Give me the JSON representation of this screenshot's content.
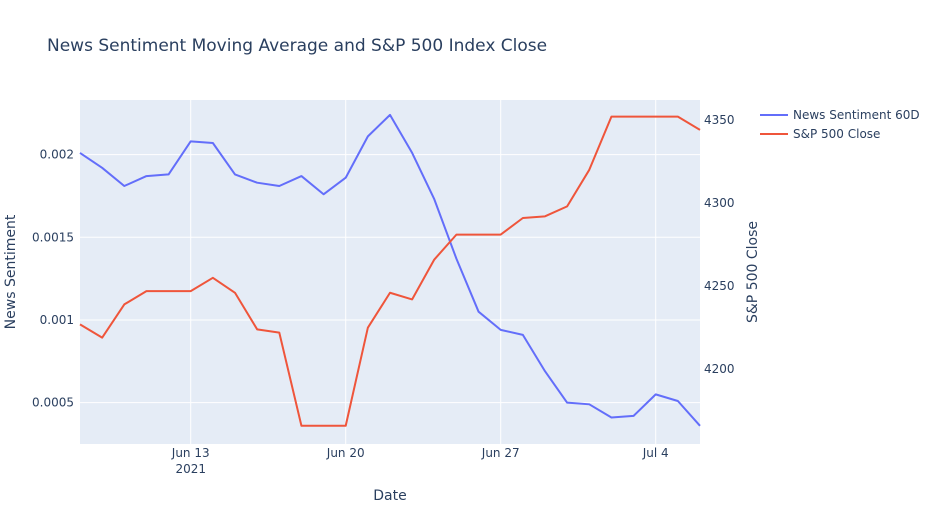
{
  "chart_data": {
    "type": "line",
    "title": "News Sentiment Moving Average and S&P 500 Index Close",
    "xlabel": "Date",
    "ylabel_left": "News Sentiment",
    "ylabel_right": "S&P 500 Close",
    "x_range": [
      "2021-06-08",
      "2021-07-06"
    ],
    "x_ticks": [
      {
        "date": "2021-06-13",
        "label": "Jun 13",
        "sublabel": "2021"
      },
      {
        "date": "2021-06-20",
        "label": "Jun 20",
        "sublabel": ""
      },
      {
        "date": "2021-06-27",
        "label": "Jun 27",
        "sublabel": ""
      },
      {
        "date": "2021-07-04",
        "label": "Jul 4",
        "sublabel": ""
      }
    ],
    "y_left": {
      "range": [
        0.00025,
        0.00233
      ],
      "ticks": [
        0.0005,
        0.001,
        0.0015,
        0.002
      ],
      "tick_labels": [
        "0.0005",
        "0.001",
        "0.0015",
        "0.002"
      ]
    },
    "y_right": {
      "range": [
        4155,
        4362
      ],
      "ticks": [
        4200,
        4250,
        4300,
        4350
      ],
      "tick_labels": [
        "4200",
        "4250",
        "4300",
        "4350"
      ]
    },
    "grid": true,
    "legend_position": "top-right",
    "series": [
      {
        "name": "News Sentiment 60D",
        "axis": "left",
        "color": "#636efa",
        "x": [
          "2021-06-08",
          "2021-06-09",
          "2021-06-10",
          "2021-06-11",
          "2021-06-12",
          "2021-06-13",
          "2021-06-14",
          "2021-06-15",
          "2021-06-16",
          "2021-06-17",
          "2021-06-18",
          "2021-06-19",
          "2021-06-20",
          "2021-06-21",
          "2021-06-22",
          "2021-06-23",
          "2021-06-24",
          "2021-06-25",
          "2021-06-26",
          "2021-06-27",
          "2021-06-28",
          "2021-06-29",
          "2021-06-30",
          "2021-07-01",
          "2021-07-02",
          "2021-07-03",
          "2021-07-04",
          "2021-07-05",
          "2021-07-06"
        ],
        "values": [
          0.00201,
          0.00192,
          0.00181,
          0.00187,
          0.00188,
          0.00208,
          0.00207,
          0.00188,
          0.00183,
          0.00181,
          0.00187,
          0.00176,
          0.00186,
          0.00211,
          0.00224,
          0.00201,
          0.00173,
          0.00137,
          0.00105,
          0.00094,
          0.00091,
          0.00069,
          0.0005,
          0.00049,
          0.00041,
          0.00042,
          0.00055,
          0.00051,
          0.00036
        ]
      },
      {
        "name": "S&P 500 Close",
        "axis": "right",
        "color": "#ef553b",
        "x": [
          "2021-06-08",
          "2021-06-09",
          "2021-06-10",
          "2021-06-11",
          "2021-06-12",
          "2021-06-13",
          "2021-06-14",
          "2021-06-15",
          "2021-06-16",
          "2021-06-17",
          "2021-06-18",
          "2021-06-19",
          "2021-06-20",
          "2021-06-21",
          "2021-06-22",
          "2021-06-23",
          "2021-06-24",
          "2021-06-25",
          "2021-06-26",
          "2021-06-27",
          "2021-06-28",
          "2021-06-29",
          "2021-06-30",
          "2021-07-01",
          "2021-07-02",
          "2021-07-03",
          "2021-07-04",
          "2021-07-05",
          "2021-07-06"
        ],
        "values": [
          4227,
          4219,
          4239,
          4247,
          4247,
          4247,
          4255,
          4246,
          4224,
          4222,
          4166,
          4166,
          4166,
          4225,
          4246,
          4242,
          4266,
          4281,
          4281,
          4281,
          4291,
          4292,
          4298,
          4320,
          4352,
          4352,
          4352,
          4352,
          4344
        ]
      }
    ]
  }
}
